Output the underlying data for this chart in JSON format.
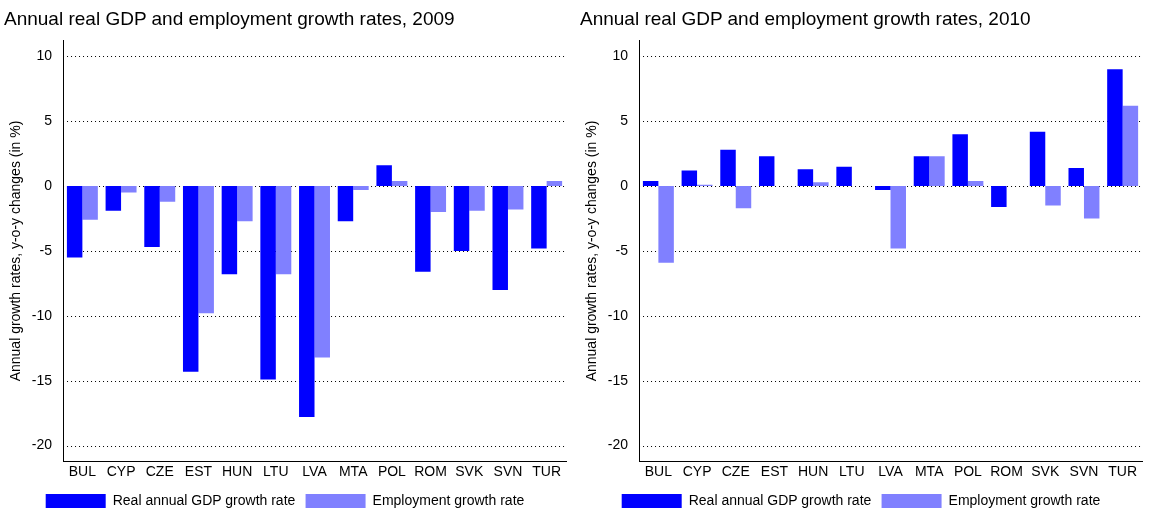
{
  "chart_data": [
    {
      "type": "bar",
      "title": "Annual real GDP and employment growth rates, 2009",
      "ylabel": "Annual growth rates, y-o-y changes (in %)",
      "categories": [
        "BUL",
        "CYP",
        "CZE",
        "EST",
        "HUN",
        "LTU",
        "LVA",
        "MTA",
        "POL",
        "ROM",
        "SVK",
        "SVN",
        "TUR"
      ],
      "series": [
        {
          "name": "Real annual GDP growth rate",
          "color": "#0000ff",
          "values": [
            -5.5,
            -1.9,
            -4.7,
            -14.3,
            -6.8,
            -14.9,
            -17.8,
            -2.7,
            1.6,
            -6.6,
            -5.0,
            -8.0,
            -4.8
          ]
        },
        {
          "name": "Employment growth rate",
          "color": "#8080ff",
          "values": [
            -2.6,
            -0.5,
            -1.2,
            -9.8,
            -2.7,
            -6.8,
            -13.2,
            -0.3,
            0.4,
            -2.0,
            -1.9,
            -1.8,
            0.4
          ]
        }
      ],
      "ylim": [
        -21.2,
        11.2
      ],
      "yticks": [
        -20,
        -15,
        -10,
        -5,
        0,
        5,
        10
      ],
      "grid": "y",
      "legend": "bottom"
    },
    {
      "type": "bar",
      "title": "Annual real GDP and employment growth rates, 2010",
      "ylabel": "Annual growth rates, y-o-y changes (in %)",
      "categories": [
        "BUL",
        "CYP",
        "CZE",
        "EST",
        "HUN",
        "LTU",
        "LVA",
        "MTA",
        "POL",
        "ROM",
        "SVK",
        "SVN",
        "TUR"
      ],
      "series": [
        {
          "name": "Real annual GDP growth rate",
          "color": "#0000ff",
          "values": [
            0.4,
            1.2,
            2.8,
            2.3,
            1.3,
            1.5,
            -0.3,
            2.3,
            4.0,
            -1.6,
            4.2,
            1.4,
            9.0
          ]
        },
        {
          "name": "Employment growth rate",
          "color": "#8080ff",
          "values": [
            -5.9,
            0.1,
            -1.7,
            null,
            0.3,
            null,
            -4.8,
            2.3,
            0.4,
            null,
            -1.5,
            -2.5,
            6.2
          ]
        }
      ],
      "ylim": [
        -21.2,
        11.2
      ],
      "yticks": [
        -20,
        -15,
        -10,
        -5,
        0,
        5,
        10
      ],
      "grid": "y",
      "legend": "bottom"
    }
  ]
}
